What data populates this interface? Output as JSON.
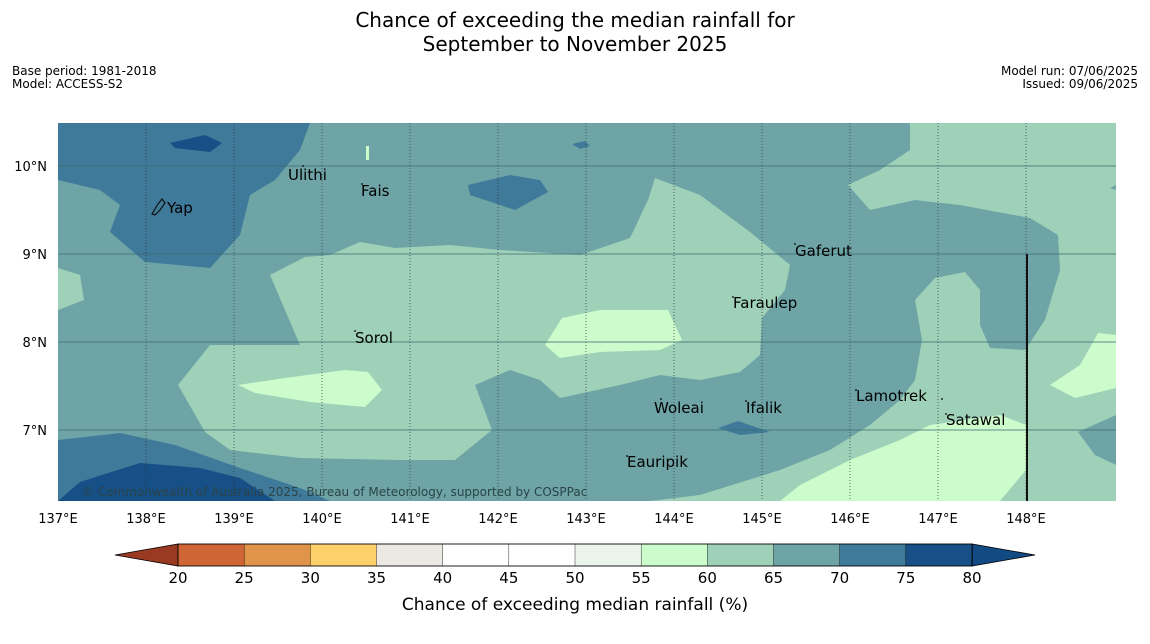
{
  "title_line1": "Chance of exceeding the median rainfall for",
  "title_line2": "September to November 2025",
  "base_period": "Base period: 1981-2018",
  "model": "Model: ACCESS-S2",
  "model_run": "Model run: 07/06/2025",
  "issued": "Issued: 09/06/2025",
  "copyright": "© Commonwealth of Australia 2025, Bureau of Meteorology, supported by COSPPac",
  "lon_ticks": [
    "137°E",
    "138°E",
    "139°E",
    "140°E",
    "141°E",
    "142°E",
    "143°E",
    "144°E",
    "145°E",
    "146°E",
    "147°E",
    "148°E"
  ],
  "lat_ticks": [
    "10°N",
    "9°N",
    "8°N",
    "7°N"
  ],
  "places": [
    {
      "name": "Yap"
    },
    {
      "name": "Ulithi"
    },
    {
      "name": "Fais"
    },
    {
      "name": "Gaferut"
    },
    {
      "name": "Faraulep"
    },
    {
      "name": "Sorol"
    },
    {
      "name": "Woleai"
    },
    {
      "name": "Ifalik"
    },
    {
      "name": "Lamotrek"
    },
    {
      "name": "Satawal"
    },
    {
      "name": "Eauripik"
    }
  ],
  "colorbar": {
    "label": "Chance of exceeding median rainfall (%)",
    "ticks": [
      "20",
      "25",
      "30",
      "35",
      "40",
      "45",
      "50",
      "55",
      "60",
      "65",
      "70",
      "75",
      "80"
    ],
    "colors": [
      "#b34a2a",
      "#cf6434",
      "#e0944a",
      "#fdd06a",
      "#ece9e5",
      "#ffffff",
      "#ffffff",
      "#ecf5ec",
      "#ccfbcc",
      "#9fd1b9",
      "#6ea4a6",
      "#3f7a9a",
      "#174f87"
    ],
    "under_color": "#9a3a22",
    "over_color": "#124a83"
  }
}
